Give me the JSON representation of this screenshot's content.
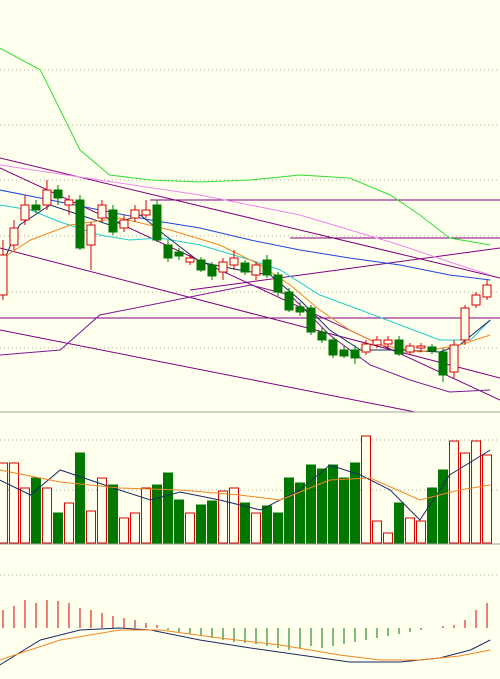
{
  "chart_data": [
    {
      "type": "candlestick",
      "x": [
        0,
        1,
        2,
        3,
        4,
        5,
        6,
        7,
        8,
        9,
        10,
        11,
        12,
        13,
        14,
        15,
        16,
        17,
        18,
        19,
        20,
        21,
        22,
        23,
        24,
        25,
        26,
        27,
        28,
        29,
        30,
        31,
        32,
        33,
        34,
        35,
        36,
        37,
        38,
        39,
        40,
        41,
        42,
        43,
        44
      ],
      "open": [
        117,
        167,
        192,
        207,
        207,
        222,
        207,
        212,
        167,
        194,
        202,
        184,
        194,
        197,
        207,
        167,
        160,
        150,
        152,
        147,
        140,
        147,
        149,
        137,
        152,
        137,
        120,
        105,
        104,
        80,
        72,
        62,
        62,
        60,
        67,
        68,
        72,
        60,
        64,
        65,
        60,
        40,
        72,
        107,
        115
      ],
      "close": [
        157,
        184,
        207,
        202,
        222,
        214,
        212,
        164,
        187,
        207,
        180,
        192,
        202,
        202,
        172,
        154,
        156,
        154,
        142,
        136,
        150,
        154,
        140,
        147,
        137,
        120,
        102,
        100,
        80,
        72,
        57,
        56,
        54,
        68,
        72,
        72,
        58,
        66,
        66,
        61,
        37,
        67,
        104,
        117,
        127
      ],
      "high": [
        172,
        192,
        217,
        212,
        232,
        227,
        217,
        217,
        190,
        212,
        207,
        197,
        207,
        212,
        212,
        172,
        164,
        157,
        155,
        150,
        154,
        162,
        152,
        150,
        157,
        140,
        124,
        110,
        107,
        84,
        75,
        66,
        67,
        72,
        76,
        76,
        76,
        69,
        69,
        68,
        64,
        72,
        107,
        120,
        132
      ],
      "low": [
        112,
        162,
        187,
        199,
        202,
        207,
        197,
        162,
        142,
        190,
        177,
        180,
        190,
        194,
        170,
        150,
        152,
        147,
        140,
        132,
        132,
        142,
        137,
        132,
        134,
        116,
        100,
        96,
        77,
        69,
        54,
        54,
        48,
        57,
        64,
        64,
        56,
        57,
        60,
        58,
        30,
        34,
        67,
        104,
        112
      ],
      "up_color": "#d40000",
      "down_color": "#007800",
      "xlim": [
        -0.27,
        45.18
      ],
      "ylim": [
        0,
        412
      ],
      "lines": [
        {
          "color": "#33dd33",
          "x": [
            -0.3,
            3.4,
            5.2,
            7,
            9.7,
            13.4,
            17.9,
            22.5,
            27,
            31.5,
            35.2,
            37.9,
            40.6,
            44.3
          ],
          "values": [
            364,
            342,
            302,
            262,
            237,
            232,
            230,
            232,
            237,
            234,
            217,
            197,
            174,
            167
          ]
        },
        {
          "color": "#ee88ee",
          "x": [
            -0.3,
            8.8,
            17.9,
            27,
            36.1,
            40.6,
            44.3
          ],
          "values": [
            247,
            232,
            217,
            197,
            167,
            150,
            137
          ]
        },
        {
          "color": "#2244dd",
          "x": [
            -0.3,
            4.3,
            8.8,
            13.4,
            17.9,
            22.5,
            27,
            31.5,
            36.1,
            40.6,
            44.3
          ],
          "values": [
            222,
            212,
            202,
            192,
            184,
            172,
            162,
            154,
            147,
            137,
            132
          ]
        },
        {
          "color": "#22cccc",
          "x": [
            -0.3,
            2.5,
            5.2,
            8.8,
            11.5,
            14.3,
            17.9,
            22.5,
            25.2,
            28.8,
            32.5,
            36.1,
            39.7,
            42.5,
            44.3
          ],
          "values": [
            207,
            202,
            190,
            177,
            172,
            174,
            167,
            152,
            142,
            117,
            102,
            87,
            72,
            72,
            92
          ]
        },
        {
          "color": "#1a2a66",
          "x": [
            -0.3,
            1.5,
            4.3,
            7,
            9.7,
            12.5,
            14.7,
            17.9,
            21.5,
            24.3,
            27,
            29.7,
            32.5,
            36.1,
            39.7,
            41.5,
            44.3
          ],
          "values": [
            142,
            187,
            207,
            197,
            187,
            197,
            177,
            150,
            142,
            137,
            112,
            82,
            62,
            62,
            60,
            67,
            92
          ]
        },
        {
          "color": "#ee8822",
          "x": [
            -0.3,
            2.5,
            6.1,
            10.6,
            15.2,
            19.7,
            23.4,
            26.1,
            28.8,
            31.5,
            34.3,
            37.9,
            41.5,
            44.3
          ],
          "values": [
            152,
            172,
            187,
            194,
            182,
            167,
            147,
            127,
            102,
            82,
            67,
            60,
            67,
            77
          ]
        },
        {
          "color": "#7a1a9a",
          "x": [
            -0.3,
            5.2,
            8.8,
            13.4,
            17.9,
            22.5,
            26.1,
            29.7,
            33.4,
            37,
            40.6,
            44.3
          ],
          "values": [
            57,
            62,
            97,
            107,
            117,
            127,
            117,
            77,
            47,
            32,
            20,
            22
          ]
        }
      ]
    },
    {
      "type": "bar",
      "values": [
        80,
        80,
        55,
        65,
        55,
        30,
        40,
        90,
        32,
        65,
        58,
        25,
        30,
        55,
        58,
        70,
        43,
        30,
        38,
        42,
        52,
        55,
        40,
        30,
        37,
        30,
        65,
        60,
        78,
        74,
        78,
        65,
        80,
        107,
        22,
        10,
        40,
        25,
        22,
        55,
        73,
        102,
        90,
        102,
        88
      ],
      "xlim": [
        -0.27,
        45.18
      ],
      "ylim": [
        0,
        131
      ],
      "lines": [
        {
          "color": "#1a2a66",
          "x": [
            -0.3,
            2.5,
            5.2,
            7.9,
            10.6,
            13.4,
            16.1,
            19.7,
            23.4,
            27,
            29.7,
            32.5,
            35.2,
            37.9,
            40.6,
            44.3
          ],
          "values": [
            63,
            48,
            73,
            63,
            53,
            43,
            51,
            43,
            33,
            53,
            78,
            68,
            53,
            23,
            68,
            93
          ]
        },
        {
          "color": "#ee8822",
          "x": [
            -0.3,
            5.2,
            10.6,
            16.1,
            21.5,
            25.2,
            29.7,
            33.4,
            37.9,
            41.5,
            44.3
          ],
          "values": [
            73,
            61,
            55,
            53,
            48,
            43,
            63,
            65,
            43,
            53,
            58
          ]
        }
      ]
    },
    {
      "type": "macd",
      "values": [
        18,
        22,
        28,
        25,
        28,
        27,
        25,
        20,
        18,
        15,
        12,
        10,
        8,
        5,
        3,
        -2,
        -4,
        -6,
        -8,
        -10,
        -12,
        -14,
        -15,
        -16,
        -18,
        -20,
        -22,
        -20,
        -18,
        -20,
        -18,
        -16,
        -14,
        -12,
        -10,
        -8,
        -6,
        -4,
        -2,
        0,
        2,
        3,
        8,
        18,
        25
      ],
      "xlim": [
        -0.27,
        45.18
      ],
      "ylim": [
        -51,
        83
      ],
      "up_color": "#d40000",
      "down_color": "#007800",
      "lines": [
        {
          "color": "#1a2a66",
          "x": [
            -0.3,
            3.4,
            7,
            10.6,
            13.4,
            17.9,
            22.5,
            27,
            31.5,
            36.1,
            39.7,
            42.5,
            44.3
          ],
          "values": [
            -37,
            -12,
            -2,
            0,
            -2,
            -12,
            -20,
            -27,
            -34,
            -34,
            -30,
            -22,
            -12
          ]
        },
        {
          "color": "#ee8822",
          "x": [
            -0.3,
            5.2,
            10.6,
            14.3,
            19.7,
            25.2,
            30.6,
            34.3,
            37.9,
            41.5,
            44.3
          ],
          "values": [
            -32,
            -12,
            -2,
            -2,
            -10,
            -17,
            -27,
            -32,
            -32,
            -28,
            -22
          ]
        }
      ]
    }
  ]
}
